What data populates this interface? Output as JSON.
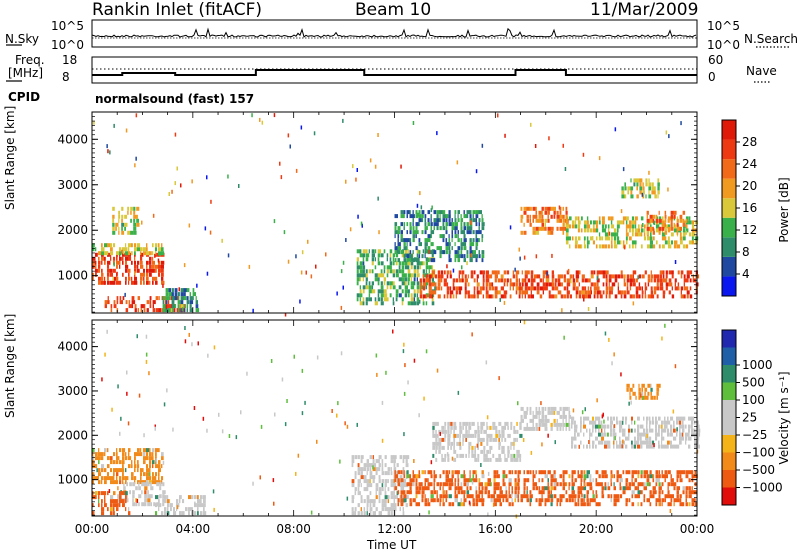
{
  "header": {
    "station": "Rankin Inlet (fitACF)",
    "beam": "Beam 10",
    "date": "11/Mar/2009"
  },
  "top_strip": {
    "left_label": "N.Sky",
    "right_label": "N.Search",
    "left_ticks": [
      "10^5",
      "10^0"
    ],
    "right_ticks": [
      "10^5",
      "10^0"
    ]
  },
  "freq_strip": {
    "left_label_1": "Freq.",
    "left_label_2": "[MHz]",
    "right_label": "Nave",
    "left_ticks": [
      "18",
      "8"
    ],
    "right_ticks": [
      "60",
      "0"
    ],
    "cpid_label": "CPID",
    "mode_text": "normalsound (fast) 157"
  },
  "x_axis": {
    "label": "Time UT",
    "ticks": [
      "00:00",
      "04:00",
      "08:00",
      "12:00",
      "16:00",
      "20:00",
      "00:00"
    ]
  },
  "colors": {
    "power": [
      "#0a18ef",
      "#1f49a0",
      "#2f8c6a",
      "#39b04a",
      "#d8c83a",
      "#f09a22",
      "#f06a1a",
      "#ee3a12",
      "#e01a08"
    ],
    "velocity": [
      "#e00d0b",
      "#ef5a12",
      "#f28a1a",
      "#f4b319",
      "#c8c8c8",
      "#c8c8c8",
      "#5fbf3d",
      "#2f8c6a",
      "#1f5fa8",
      "#2028b0"
    ]
  },
  "chart_data": [
    {
      "type": "heatmap",
      "title": "",
      "xlabel": "Time UT",
      "ylabel": "Slant Range [km]",
      "xlim": [
        "00:00",
        "24:00"
      ],
      "ylim": [
        180,
        4600
      ],
      "yticks": [
        1000,
        2000,
        3000,
        4000
      ],
      "colorbar": {
        "label": "Power [dB]",
        "range": [
          0,
          32
        ],
        "ticks": [
          4,
          8,
          12,
          16,
          20,
          24,
          28
        ]
      },
      "regions": [
        {
          "t0": 0.0,
          "t1": 2.8,
          "r0": 800,
          "r1": 1450,
          "value": 27
        },
        {
          "t0": 0.0,
          "t1": 2.8,
          "r0": 1450,
          "r1": 1700,
          "value": 16
        },
        {
          "t0": 0.8,
          "t1": 1.8,
          "r0": 1900,
          "r1": 2500,
          "value": 15
        },
        {
          "t0": 0.5,
          "t1": 3.6,
          "r0": 200,
          "r1": 550,
          "value": 26
        },
        {
          "t0": 2.8,
          "t1": 4.2,
          "r0": 200,
          "r1": 700,
          "value": 10
        },
        {
          "t0": 10.5,
          "t1": 13.5,
          "r0": 350,
          "r1": 1500,
          "value": 12
        },
        {
          "t0": 12.0,
          "t1": 15.5,
          "r0": 1300,
          "r1": 2400,
          "value": 9
        },
        {
          "t0": 13.0,
          "t1": 24.0,
          "r0": 500,
          "r1": 1050,
          "value": 26
        },
        {
          "t0": 17.0,
          "t1": 18.8,
          "r0": 1900,
          "r1": 2500,
          "value": 22
        },
        {
          "t0": 18.8,
          "t1": 24.0,
          "r0": 1600,
          "r1": 2300,
          "value": 16
        },
        {
          "t0": 22.0,
          "t1": 23.6,
          "r0": 1900,
          "r1": 2400,
          "value": 22
        },
        {
          "t0": 21.0,
          "t1": 22.5,
          "r0": 2700,
          "r1": 3100,
          "value": 15
        }
      ]
    },
    {
      "type": "heatmap",
      "title": "",
      "xlabel": "Time UT",
      "ylabel": "Slant Range [km]",
      "xlim": [
        "00:00",
        "24:00"
      ],
      "ylim": [
        180,
        4600
      ],
      "yticks": [
        1000,
        2000,
        3000,
        4000
      ],
      "colorbar": {
        "label": "Velocity [m s⁻¹]",
        "ticks": [
          -1000,
          -500,
          -100,
          -25,
          25,
          100,
          500,
          1000
        ]
      },
      "regions": [
        {
          "t0": 0.0,
          "t1": 2.8,
          "r0": 900,
          "r1": 1700,
          "value": -100
        },
        {
          "t0": 1.0,
          "t1": 2.8,
          "r0": 400,
          "r1": 900,
          "value": 100
        },
        {
          "t0": 0.0,
          "t1": 1.5,
          "r0": 200,
          "r1": 700,
          "value": -500
        },
        {
          "t0": 2.5,
          "t1": 4.5,
          "r0": 200,
          "r1": 600,
          "value": 50
        },
        {
          "t0": 10.3,
          "t1": 12.5,
          "r0": 200,
          "r1": 1500,
          "value": 100
        },
        {
          "t0": 12.0,
          "t1": 24.0,
          "r0": 400,
          "r1": 1200,
          "value": -500
        },
        {
          "t0": 13.5,
          "t1": 17.0,
          "r0": 1400,
          "r1": 2300,
          "value": 0
        },
        {
          "t0": 17.0,
          "t1": 19.0,
          "r0": 2100,
          "r1": 2600,
          "value": 0
        },
        {
          "t0": 19.0,
          "t1": 24.0,
          "r0": 1700,
          "r1": 2400,
          "value": 0
        },
        {
          "t0": 21.2,
          "t1": 22.6,
          "r0": 2800,
          "r1": 3100,
          "value": -100
        }
      ]
    }
  ]
}
